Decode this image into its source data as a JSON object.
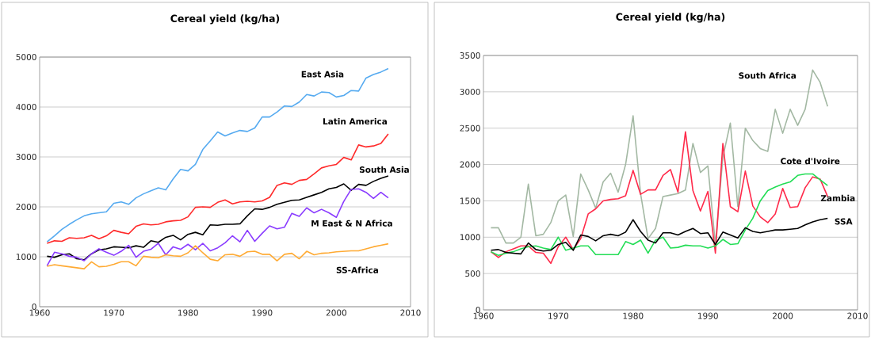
{
  "chart_data": [
    {
      "type": "line",
      "title": "Cereal yield (kg/ha)",
      "x": [
        1961,
        1962,
        1963,
        1964,
        1965,
        1966,
        1967,
        1968,
        1969,
        1970,
        1971,
        1972,
        1973,
        1974,
        1975,
        1976,
        1977,
        1978,
        1979,
        1980,
        1981,
        1982,
        1983,
        1984,
        1985,
        1986,
        1987,
        1988,
        1989,
        1990,
        1991,
        1992,
        1993,
        1994,
        1995,
        1996,
        1997,
        1998,
        1999,
        2000,
        2001,
        2002,
        2003,
        2004,
        2005,
        2006,
        2007
      ],
      "xlim": [
        1960,
        2010
      ],
      "xticks": [
        1960,
        1970,
        1980,
        1990,
        2000,
        2010
      ],
      "ylim": [
        0,
        5000
      ],
      "yticks": [
        0,
        1000,
        2000,
        3000,
        4000,
        5000
      ],
      "grid": "y",
      "series": [
        {
          "name": "East Asia",
          "color": "#55aaf0",
          "values": [
            1300,
            1420,
            1550,
            1650,
            1740,
            1820,
            1860,
            1880,
            1900,
            2070,
            2100,
            2050,
            2180,
            2260,
            2320,
            2380,
            2340,
            2560,
            2750,
            2720,
            2850,
            3150,
            3320,
            3500,
            3420,
            3480,
            3530,
            3510,
            3580,
            3800,
            3800,
            3900,
            4020,
            4010,
            4100,
            4250,
            4220,
            4300,
            4290,
            4200,
            4230,
            4330,
            4320,
            4580,
            4650,
            4700,
            4770
          ]
        },
        {
          "name": "Latin America",
          "color": "#ff2a2a",
          "values": [
            1270,
            1320,
            1310,
            1380,
            1370,
            1380,
            1430,
            1360,
            1420,
            1530,
            1490,
            1460,
            1610,
            1660,
            1640,
            1650,
            1700,
            1720,
            1730,
            1800,
            1990,
            2000,
            1990,
            2090,
            2140,
            2060,
            2100,
            2110,
            2100,
            2120,
            2190,
            2430,
            2480,
            2450,
            2530,
            2550,
            2660,
            2780,
            2820,
            2850,
            2990,
            2940,
            3240,
            3200,
            3220,
            3270,
            3460
          ]
        },
        {
          "name": "South Asia",
          "color": "#000000",
          "values": [
            1010,
            990,
            1040,
            1060,
            960,
            940,
            1060,
            1140,
            1160,
            1200,
            1190,
            1180,
            1220,
            1190,
            1320,
            1290,
            1390,
            1430,
            1340,
            1450,
            1490,
            1440,
            1640,
            1630,
            1650,
            1650,
            1660,
            1820,
            1960,
            1950,
            1990,
            2050,
            2090,
            2130,
            2140,
            2190,
            2240,
            2290,
            2360,
            2390,
            2460,
            2330,
            2450,
            2430,
            2510,
            2570,
            2620
          ]
        },
        {
          "name": "M East & N Africa",
          "color": "#8a3cff",
          "values": [
            820,
            1090,
            1060,
            1010,
            990,
            920,
            1060,
            1160,
            1090,
            1030,
            1110,
            1230,
            990,
            1110,
            1150,
            1270,
            1040,
            1200,
            1150,
            1250,
            1140,
            1270,
            1120,
            1180,
            1280,
            1420,
            1300,
            1530,
            1310,
            1470,
            1620,
            1560,
            1590,
            1870,
            1810,
            1980,
            1880,
            1950,
            1880,
            1790,
            2110,
            2350,
            2360,
            2290,
            2170,
            2290,
            2180
          ]
        },
        {
          "name": "SS-Africa",
          "color": "#ffaa33",
          "values": [
            810,
            840,
            820,
            800,
            780,
            760,
            900,
            800,
            810,
            850,
            900,
            900,
            820,
            1010,
            990,
            980,
            1040,
            1020,
            1010,
            1080,
            1220,
            1080,
            950,
            920,
            1040,
            1050,
            1010,
            1100,
            1110,
            1050,
            1050,
            920,
            1050,
            1070,
            960,
            1110,
            1040,
            1070,
            1080,
            1100,
            1110,
            1120,
            1120,
            1160,
            1200,
            1230,
            1260
          ]
        }
      ]
    },
    {
      "type": "line",
      "title": "Cereal yield (kg/ha)",
      "x": [
        1961,
        1962,
        1963,
        1964,
        1965,
        1966,
        1967,
        1968,
        1969,
        1970,
        1971,
        1972,
        1973,
        1974,
        1975,
        1976,
        1977,
        1978,
        1979,
        1980,
        1981,
        1982,
        1983,
        1984,
        1985,
        1986,
        1987,
        1988,
        1989,
        1990,
        1991,
        1992,
        1993,
        1994,
        1995,
        1996,
        1997,
        1998,
        1999,
        2000,
        2001,
        2002,
        2003,
        2004,
        2005,
        2006
      ],
      "xlim": [
        1960,
        2010
      ],
      "xticks": [
        1960,
        1970,
        1980,
        1990,
        2000,
        2010
      ],
      "ylim": [
        0,
        3500
      ],
      "yticks": [
        0,
        500,
        1000,
        1500,
        2000,
        2500,
        3000,
        3500
      ],
      "grid": "y",
      "series": [
        {
          "name": "South Africa",
          "color": "#a3b8a3",
          "values": [
            1130,
            1130,
            920,
            920,
            1000,
            1730,
            1020,
            1040,
            1200,
            1500,
            1580,
            1010,
            1870,
            1650,
            1400,
            1760,
            1880,
            1620,
            2000,
            2670,
            1600,
            980,
            1120,
            1560,
            1580,
            1600,
            1650,
            2290,
            1890,
            1980,
            900,
            2100,
            2570,
            1420,
            2500,
            2330,
            2220,
            2180,
            2760,
            2430,
            2760,
            2540,
            2760,
            3300,
            3130,
            2800
          ]
        },
        {
          "name": "Zambia",
          "color": "#ff2a4a",
          "values": [
            800,
            720,
            800,
            840,
            880,
            880,
            790,
            780,
            640,
            870,
            1000,
            830,
            980,
            1320,
            1390,
            1500,
            1520,
            1530,
            1570,
            1920,
            1590,
            1650,
            1650,
            1850,
            1930,
            1620,
            2450,
            1640,
            1360,
            1630,
            780,
            2290,
            1420,
            1350,
            1910,
            1430,
            1280,
            1200,
            1320,
            1670,
            1410,
            1420,
            1680,
            1830,
            1800,
            1560
          ]
        },
        {
          "name": "Cote d'Ivoire",
          "color": "#22dd55",
          "values": [
            800,
            750,
            780,
            800,
            840,
            870,
            880,
            850,
            830,
            1000,
            820,
            850,
            880,
            880,
            760,
            760,
            760,
            760,
            940,
            900,
            960,
            780,
            960,
            1000,
            850,
            860,
            890,
            880,
            880,
            850,
            880,
            970,
            900,
            910,
            1100,
            1260,
            1500,
            1640,
            1690,
            1730,
            1760,
            1850,
            1870,
            1870,
            1790,
            1710
          ]
        },
        {
          "name": "SSA",
          "color": "#000000",
          "values": [
            820,
            830,
            790,
            780,
            770,
            920,
            830,
            810,
            820,
            900,
            930,
            820,
            1030,
            1010,
            950,
            1020,
            1040,
            1020,
            1070,
            1240,
            1080,
            960,
            920,
            1060,
            1060,
            1030,
            1080,
            1120,
            1050,
            1060,
            900,
            1070,
            1030,
            990,
            1130,
            1080,
            1060,
            1080,
            1100,
            1100,
            1110,
            1120,
            1170,
            1210,
            1240,
            1260
          ]
        }
      ]
    }
  ]
}
